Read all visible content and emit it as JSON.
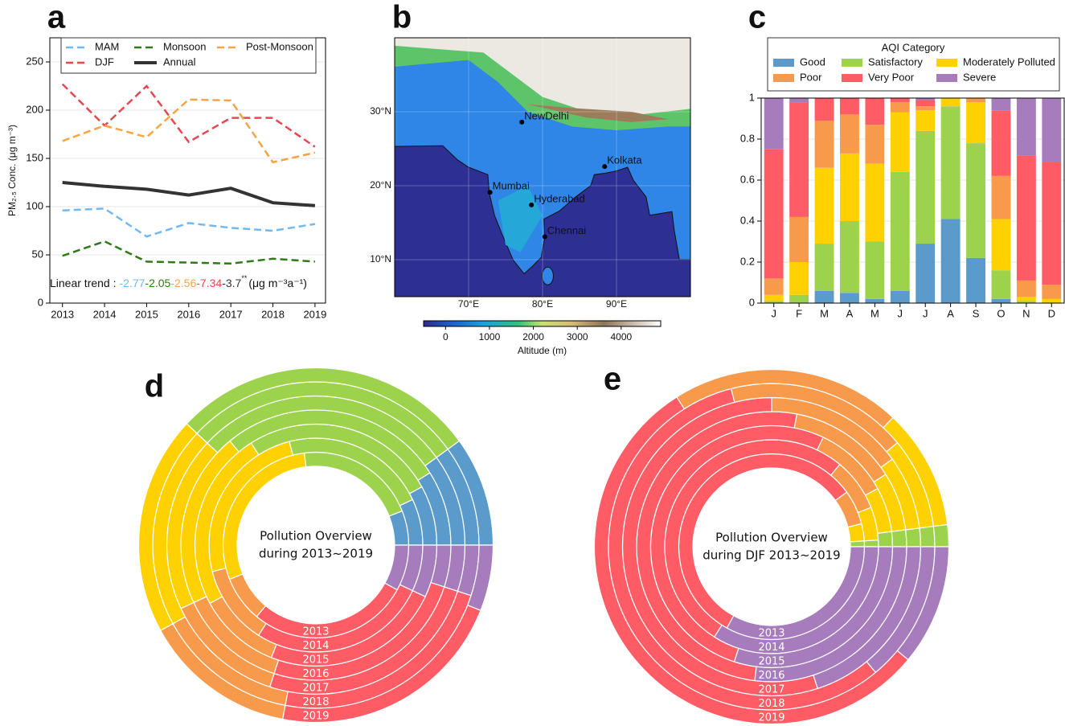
{
  "chart_data": [
    {
      "type": "line",
      "panel_label": "a",
      "ylabel": "PM₂.₅ Conc. (μg m⁻³)",
      "x": [
        2013,
        2014,
        2015,
        2016,
        2017,
        2018,
        2019
      ],
      "xlim": [
        2012.7,
        2019.25
      ],
      "xticks": [
        2013,
        2014,
        2015,
        2016,
        2017,
        2018,
        2019
      ],
      "ylim": [
        0,
        275
      ],
      "yticks": [
        0,
        50,
        100,
        150,
        200,
        250
      ],
      "grid": true,
      "legend": "upper left",
      "series": [
        {
          "name": "MAM",
          "color": "#72b8ee",
          "dashed": true,
          "linewidth": 2.5,
          "values": [
            96,
            98,
            69,
            83,
            78,
            75,
            82
          ]
        },
        {
          "name": "DJF",
          "color": "#e8474f",
          "dashed": true,
          "linewidth": 2.5,
          "values": [
            227,
            184,
            225,
            167,
            192,
            192,
            162
          ]
        },
        {
          "name": "Monsoon",
          "color": "#2e7a14",
          "dashed": true,
          "linewidth": 2.5,
          "values": [
            49,
            64,
            43,
            42,
            41,
            46,
            43
          ]
        },
        {
          "name": "Annual",
          "color": "#333333",
          "dashed": false,
          "linewidth": 4,
          "values": [
            125,
            121,
            118,
            112,
            119,
            104,
            101
          ]
        },
        {
          "name": "Post-Monsoon",
          "color": "#f4a443",
          "dashed": true,
          "linewidth": 2.5,
          "values": [
            168,
            184,
            172,
            211,
            210,
            146,
            156
          ]
        }
      ],
      "trend": {
        "label": "Linear trend :",
        "parts": [
          "-2.77",
          "-2.05",
          "-2.56",
          "-7.34",
          "-3.7"
        ],
        "colors": [
          "#72b8ee",
          "#2e7a14",
          "#f4a443",
          "#e8474f",
          "#333333"
        ],
        "significance": "**",
        "unit": "(μg m⁻³a⁻¹)"
      }
    },
    {
      "type": "map",
      "panel_label": "b",
      "xlim": [
        60,
        100
      ],
      "ylim": [
        5,
        40
      ],
      "xticks": [
        {
          "value": 70,
          "label": "70°E"
        },
        {
          "value": 80,
          "label": "80°E"
        },
        {
          "value": 90,
          "label": "90°E"
        }
      ],
      "yticks": [
        {
          "value": 10,
          "label": "10°N"
        },
        {
          "value": 20,
          "label": "20°N"
        },
        {
          "value": 30,
          "label": "30°N"
        }
      ],
      "cities": [
        {
          "name": "NewDelhi",
          "lon": 77.2,
          "lat": 28.6
        },
        {
          "name": "Mumbai",
          "lon": 72.9,
          "lat": 19.1
        },
        {
          "name": "Hyderabad",
          "lon": 78.5,
          "lat": 17.4
        },
        {
          "name": "Chennai",
          "lon": 80.3,
          "lat": 13.1
        },
        {
          "name": "Kolkata",
          "lon": 88.4,
          "lat": 22.6
        }
      ],
      "colorbar": {
        "label": "Altitude (m)",
        "lim": [
          -500,
          4900
        ],
        "ticks": [
          0,
          1000,
          2000,
          3000,
          4000
        ]
      }
    },
    {
      "type": "stacked_bar",
      "panel_label": "c",
      "legend_title": "AQI Category",
      "categories": [
        "J",
        "F",
        "M",
        "A",
        "M",
        "J",
        "J",
        "A",
        "S",
        "O",
        "N",
        "D"
      ],
      "ylim": [
        0,
        1
      ],
      "yticks": [
        0,
        0.2,
        0.4,
        0.6,
        0.8,
        1
      ],
      "grid": true,
      "series": [
        {
          "name": "Good",
          "color": "#5b9bcb",
          "values": [
            0,
            0,
            0.06,
            0.05,
            0.02,
            0.06,
            0.29,
            0.41,
            0.22,
            0.02,
            0,
            0
          ]
        },
        {
          "name": "Satisfactory",
          "color": "#9dd34c",
          "values": [
            0.01,
            0.04,
            0.23,
            0.35,
            0.28,
            0.58,
            0.55,
            0.55,
            0.56,
            0.14,
            0.01,
            0
          ]
        },
        {
          "name": "Moderately Polluted",
          "color": "#ffd100",
          "values": [
            0.03,
            0.16,
            0.37,
            0.33,
            0.38,
            0.29,
            0.1,
            0.04,
            0.2,
            0.25,
            0.02,
            0.02
          ]
        },
        {
          "name": "Poor",
          "color": "#f89a4b",
          "values": [
            0.08,
            0.22,
            0.23,
            0.19,
            0.19,
            0.05,
            0.02,
            0,
            0.02,
            0.21,
            0.08,
            0.07
          ]
        },
        {
          "name": "Very Poor",
          "color": "#ff5c65",
          "values": [
            0.63,
            0.56,
            0.11,
            0.08,
            0.13,
            0.02,
            0.03,
            0,
            0,
            0.32,
            0.61,
            0.6
          ]
        },
        {
          "name": "Severe",
          "color": "#a77cbd",
          "values": [
            0.25,
            0.02,
            0,
            0,
            0,
            0,
            0.01,
            0,
            0,
            0.06,
            0.28,
            0.31
          ]
        }
      ]
    },
    {
      "type": "ring",
      "panel_label": "d",
      "center_text": [
        "Pollution Overview",
        "during 2013~2019"
      ],
      "categories": [
        "2013",
        "2014",
        "2015",
        "2016",
        "2017",
        "2018",
        "2019"
      ],
      "series": [
        {
          "color": "#5b9bcb",
          "values": [
            0.06,
            0.07,
            0.08,
            0.09,
            0.1,
            0.1,
            0.1
          ]
        },
        {
          "color": "#9dd34c",
          "values": [
            0.21,
            0.22,
            0.26,
            0.27,
            0.28,
            0.28,
            0.28
          ]
        },
        {
          "color": "#ffd100",
          "values": [
            0.29,
            0.25,
            0.24,
            0.21,
            0.19,
            0.2,
            0.2
          ]
        },
        {
          "color": "#f89a4b",
          "values": [
            0.08,
            0.12,
            0.11,
            0.13,
            0.13,
            0.14,
            0.14
          ]
        },
        {
          "color": "#ff5c65",
          "values": [
            0.28,
            0.27,
            0.24,
            0.25,
            0.25,
            0.23,
            0.22
          ]
        },
        {
          "color": "#a77cbd",
          "values": [
            0.08,
            0.07,
            0.07,
            0.05,
            0.05,
            0.05,
            0.06
          ]
        }
      ]
    },
    {
      "type": "ring",
      "panel_label": "e",
      "center_text": [
        "Pollution Overview",
        "during DJF 2013~2019"
      ],
      "categories": [
        "2013",
        "2014",
        "2015",
        "2016",
        "2017",
        "2018",
        "2019"
      ],
      "series": [
        {
          "color": "#5b9bcb",
          "values": [
            0,
            0,
            0,
            0,
            0,
            0,
            0
          ]
        },
        {
          "color": "#9dd34c",
          "values": [
            0.01,
            0.01,
            0.02,
            0.02,
            0.02,
            0.02,
            0.02
          ]
        },
        {
          "color": "#ffd100",
          "values": [
            0.03,
            0.05,
            0.06,
            0.07,
            0.08,
            0.09,
            0.11
          ]
        },
        {
          "color": "#f89a4b",
          "values": [
            0.06,
            0.08,
            0.1,
            0.13,
            0.15,
            0.18,
            0.21
          ]
        },
        {
          "color": "#ff5c65",
          "values": [
            0.57,
            0.52,
            0.52,
            0.51,
            0.55,
            0.57,
            0.55
          ]
        },
        {
          "color": "#a77cbd",
          "values": [
            0.33,
            0.34,
            0.3,
            0.27,
            0.2,
            0.14,
            0.11
          ]
        }
      ]
    }
  ]
}
